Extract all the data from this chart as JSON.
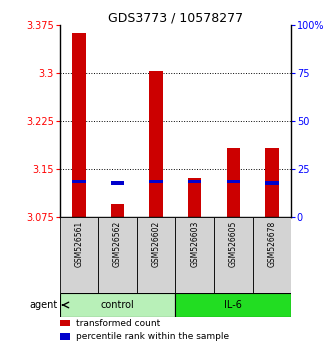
{
  "title": "GDS3773 / 10578277",
  "samples": [
    "GSM526561",
    "GSM526562",
    "GSM526602",
    "GSM526603",
    "GSM526605",
    "GSM526678"
  ],
  "red_values": [
    3.362,
    3.095,
    3.302,
    3.135,
    3.182,
    3.182
  ],
  "blue_values": [
    3.13,
    3.128,
    3.13,
    3.13,
    3.13,
    3.128
  ],
  "y_min": 3.075,
  "y_max": 3.375,
  "y_ticks_left": [
    3.075,
    3.15,
    3.225,
    3.3,
    3.375
  ],
  "y_ticks_right_pct": [
    0,
    25,
    50,
    75,
    100
  ],
  "y_ticks_right_labels": [
    "0",
    "25",
    "50",
    "75",
    "100%"
  ],
  "bar_width": 0.35,
  "red_color": "#cc0000",
  "blue_color": "#0000cc",
  "blue_bar_height": 0.006,
  "background_color": "#ffffff",
  "gray_bg": "#d3d3d3",
  "control_color": "#b8f0b8",
  "il6_color": "#22dd22",
  "legend_items": [
    {
      "color": "#cc0000",
      "label": "transformed count"
    },
    {
      "color": "#0000cc",
      "label": "percentile rank within the sample"
    }
  ],
  "group_spans": [
    {
      "start": 0,
      "end": 2,
      "label": "control",
      "color": "#b8f0b8"
    },
    {
      "start": 3,
      "end": 5,
      "label": "IL-6",
      "color": "#22dd22"
    }
  ]
}
